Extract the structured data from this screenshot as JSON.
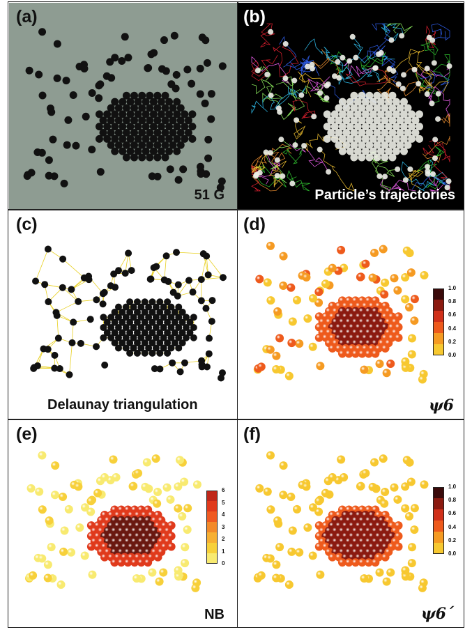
{
  "figure": {
    "panels": [
      {
        "label": "(a)",
        "caption": "51 G"
      },
      {
        "label": "(b)",
        "caption": "Particle’s trajectories"
      },
      {
        "label": "(c)",
        "caption": "Delaunay triangulation"
      },
      {
        "label": "(d)",
        "caption": "ψ6"
      },
      {
        "label": "(e)",
        "caption": "NB"
      },
      {
        "label": "(f)",
        "caption": "ψ6´"
      }
    ],
    "colorbar_psi6": {
      "ticks": [
        "1.0",
        "0.8",
        "0.6",
        "0.4",
        "0.2",
        "0.0"
      ],
      "colors": [
        "#3a0a0a",
        "#8b1a10",
        "#d0301a",
        "#ee5a1c",
        "#f59a22",
        "#f7c830"
      ]
    },
    "colorbar_nb": {
      "ticks": [
        "6",
        "5",
        "4",
        "3",
        "2",
        "1",
        "0"
      ],
      "colors": [
        "#c0281a",
        "#e03a1c",
        "#ef5a22",
        "#f38a2a",
        "#f7b033",
        "#f7d03a",
        "#f8ea70"
      ]
    },
    "colorbar_psi6p": {
      "ticks": [
        "1.0",
        "0.8",
        "0.6",
        "0.4",
        "0.2",
        "0.0"
      ],
      "colors": [
        "#3a0a0a",
        "#8b1a10",
        "#d0301a",
        "#ee5a1c",
        "#f59a22",
        "#f7c830"
      ]
    }
  }
}
